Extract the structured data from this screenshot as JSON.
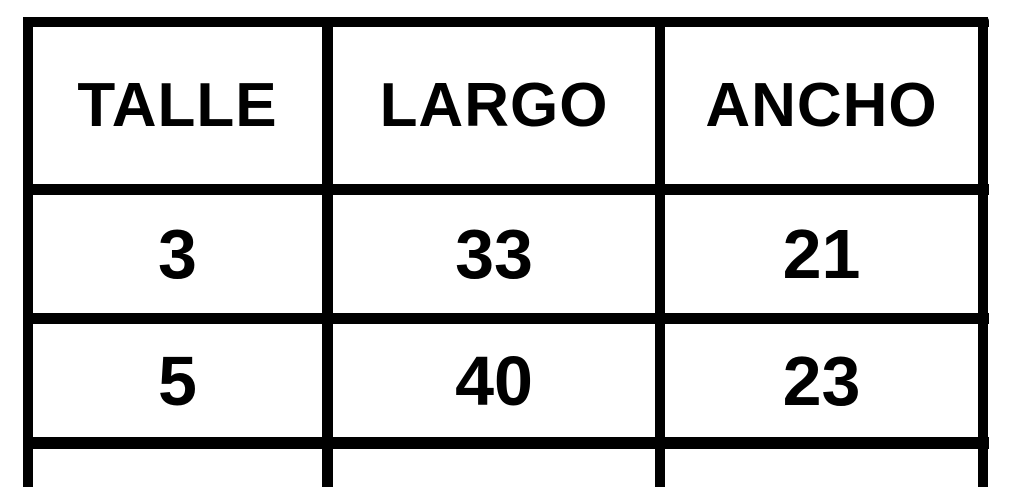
{
  "table": {
    "headers": [
      "TALLE",
      "LARGO",
      "ANCHO"
    ],
    "rows": [
      [
        "3",
        "33",
        "21"
      ],
      [
        "5",
        "40",
        "23"
      ]
    ]
  },
  "colors": {
    "border": "#000000",
    "text": "#000000",
    "background": "#ffffff"
  }
}
